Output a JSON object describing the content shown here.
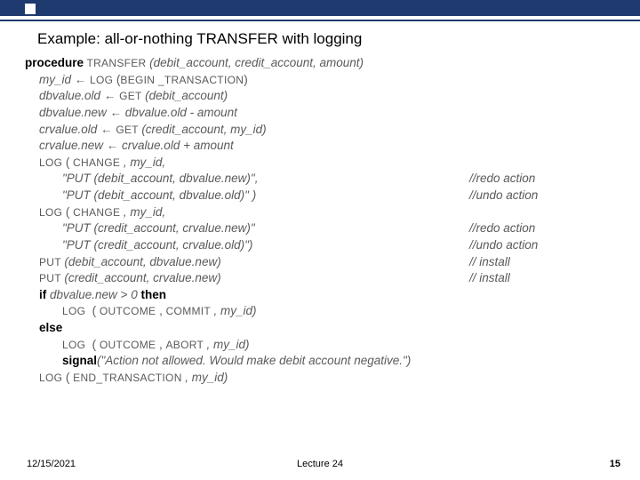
{
  "colors": {
    "header_bg": "#1f3a6e",
    "text_body": "#5a5a5a",
    "text_bold": "#000000",
    "background": "#ffffff"
  },
  "typography": {
    "title_fontsize": 17,
    "code_fontsize": 13.5,
    "footer_fontsize": 11,
    "code_font": "Comic Sans MS"
  },
  "title": "Example: all-or-nothing TRANSFER with logging",
  "code": {
    "l1_kw": "procedure",
    "l1_fn": " TRANSFER ",
    "l1_args": "(debit_account, credit_account, amount)",
    "l2_a": "my_id ",
    "l2_arrow": "← ",
    "l2_fn": "LOG ",
    "l2_b": "(",
    "l2_sc": "BEGIN _TRANSACTION",
    "l2_c": ")",
    "l3_a": "dbvalue.old ",
    "l3_arrow": "← ",
    "l3_fn": "GET ",
    "l3_b": "(debit_account)",
    "l4": "dbvalue.new ← dbvalue.old - amount",
    "l5_a": "crvalue.old ",
    "l5_arrow": "← ",
    "l5_fn": "GET ",
    "l5_b": "(credit_account, my_id)",
    "l6": "crvalue.new ← crvalue.old + amount",
    "l7_fn": "LOG ",
    "l7_a": "(",
    "l7_sc": " CHANGE ",
    "l7_b": ", my_id,",
    "l8": "\"PUT (debit_account, dbvalue.new)\",",
    "l8_c": "//redo action",
    "l9": "\"PUT (debit_account, dbvalue.old)\" )",
    "l9_c": "//undo action",
    "l10_fn": "LOG ",
    "l10_a": "( ",
    "l10_sc": "CHANGE ",
    "l10_b": ", my_id,",
    "l11": "\"PUT (credit_account, crvalue.new)\"",
    "l11_c": "//redo action",
    "l12": "\"PUT (credit_account, crvalue.old)\")",
    "l12_c": "//undo action",
    "l13_fn": "PUT ",
    "l13_a": "(debit_account, dbvalue.new)",
    "l13_c": "// install",
    "l14_fn": "PUT ",
    "l14_a": "(credit_account, crvalue.new)",
    "l14_c": "// install",
    "l15_kw1": "if ",
    "l15_a": "dbvalue.new > 0 ",
    "l15_kw2": "then",
    "l16_fn": "LOG ",
    "l16_a": " ( ",
    "l16_sc1": "OUTCOME",
    "l16_b": " , ",
    "l16_sc2": "COMMIT ",
    "l16_c": ", my_id)",
    "l17_kw": "else",
    "l18_fn": "LOG ",
    "l18_a": " ( ",
    "l18_sc1": "OUTCOME ",
    "l18_b": ", ",
    "l18_sc2": "ABORT ",
    "l18_c": ", my_id)",
    "l19_kw": "signal",
    "l19_a": "(\"Action not allowed. Would make debit account negative.\")",
    "l20_fn": "LOG ",
    "l20_a": "( ",
    "l20_sc": "END_TRANSACTION ",
    "l20_b": ", my_id)"
  },
  "footer": {
    "date": "12/15/2021",
    "lecture": "Lecture 24",
    "page": "15"
  }
}
